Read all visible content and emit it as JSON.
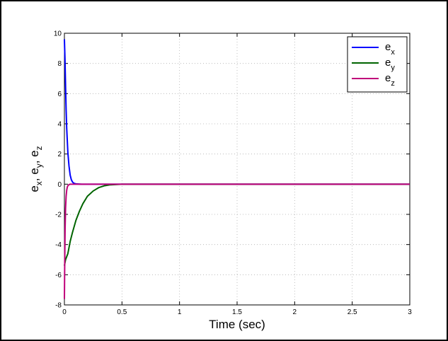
{
  "chart_data": {
    "type": "line",
    "xlabel": "Time (sec)",
    "ylabel": {
      "base": "e",
      "subs": [
        "x",
        "y",
        "z"
      ],
      "separator": ", "
    },
    "xlim": [
      0,
      3
    ],
    "ylim": [
      -8,
      10
    ],
    "xticks": [
      0,
      0.5,
      1,
      1.5,
      2,
      2.5,
      3
    ],
    "xtick_labels": [
      "0",
      "0.5",
      "1",
      "1.5",
      "2",
      "2.5",
      "3"
    ],
    "yticks": [
      -8,
      -6,
      -4,
      -2,
      0,
      2,
      4,
      6,
      8,
      10
    ],
    "ytick_labels": [
      "-8",
      "-6",
      "-4",
      "-2",
      "0",
      "2",
      "4",
      "6",
      "8",
      "10"
    ],
    "grid": true,
    "legend_position": "top-right",
    "series": [
      {
        "name": "e_x",
        "legend_base": "e",
        "legend_sub": "x",
        "color": "#0000ff",
        "x": [
          0,
          0.005,
          0.01,
          0.015,
          0.02,
          0.03,
          0.04,
          0.05,
          0.06,
          0.07,
          0.08,
          0.1,
          0.15,
          0.2,
          0.5,
          1,
          1.5,
          2,
          2.5,
          3
        ],
        "y": [
          9.6,
          8.3,
          6.5,
          4.9,
          3.7,
          2.1,
          1.2,
          0.6,
          0.3,
          0.15,
          0.07,
          0.02,
          0,
          0,
          0,
          0,
          0,
          0,
          0,
          0
        ]
      },
      {
        "name": "e_y",
        "legend_base": "e",
        "legend_sub": "y",
        "color": "#006400",
        "x": [
          0,
          0.01,
          0.02,
          0.03,
          0.05,
          0.07,
          0.1,
          0.13,
          0.16,
          0.2,
          0.25,
          0.3,
          0.35,
          0.4,
          0.5,
          0.6,
          1,
          1.5,
          2,
          2.5,
          3
        ],
        "y": [
          -5.4,
          -5.0,
          -4.8,
          -4.6,
          -3.8,
          -3.2,
          -2.4,
          -1.8,
          -1.3,
          -0.8,
          -0.45,
          -0.22,
          -0.1,
          -0.04,
          0,
          0,
          0,
          0,
          0,
          0,
          0
        ]
      },
      {
        "name": "e_z",
        "legend_base": "e",
        "legend_sub": "z",
        "color": "#c0007a",
        "x": [
          0,
          0.003,
          0.006,
          0.01,
          0.015,
          0.02,
          0.025,
          0.03,
          0.04,
          0.05,
          0.1,
          0.5,
          1,
          1.5,
          2,
          2.5,
          3
        ],
        "y": [
          -7.6,
          -5.0,
          -3.0,
          -1.6,
          -0.8,
          -0.4,
          -0.2,
          -0.1,
          -0.03,
          0,
          0,
          0,
          0,
          0,
          0,
          0,
          0
        ]
      }
    ]
  }
}
